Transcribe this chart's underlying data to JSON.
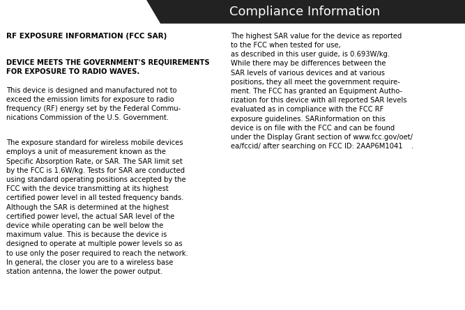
{
  "title": "Compliance Information",
  "title_bg": "#222222",
  "title_color": "#ffffff",
  "title_fontsize": 13,
  "bg_color": "#ffffff",
  "text_color": "#000000",
  "body_fontsize": 7.2,
  "left_heading": "RF EXPOSURE INFORMATION (FCC SAR)",
  "left_para1": "DEVICE MEETS THE GOVERNMENT'S REQUIREMENTS\nFOR EXPOSURE TO RADIO WAVES.",
  "left_para2": "This device is designed and manufactured not to\nexceed the emission limits for exposure to radio\nfrequency (RF) energy set by the Federal Commu-\nnications Commission of the U.S. Government.",
  "left_para3": "The exposure standard for wireless mobile devices\nemploys a unit of measurement known as the\nSpecific Absorption Rate, or SAR. The SAR limit set\nby the FCC is 1.6W/kg. Tests for SAR are conducted\nusing standard operating positions accepted by the\nFCC with the device transmitting at its highest\ncertified power level in all tested frequency bands.\nAlthough the SAR is determined at the highest\ncertified power level, the actual SAR level of the\ndevice while operating can be well below the\nmaximum value. This is because the device is\ndesigned to operate at multiple power levels so as\nto use only the poser required to reach the network.\nIn general, the closer you are to a wireless base\nstation antenna, the lower the power output.",
  "right_para1": "The highest SAR value for the device as reported\nto the FCC when tested for use,\nas described in this user guide, is 0.693W/kg.\nWhile there may be differences between the\nSAR levels of various devices and at various\npositions, they all meet the government require-\nment. The FCC has granted an Equipment Autho-\nrization for this device with all reported SAR levels\nevaluated as in compliance with the FCC RF\nexposure guidelines. SARinformation on this\ndevice is on file with the FCC and can be found\nunder the Display Grant section of www.fcc.gov/oet/\nea/fccid/ after searching on FCC ID: 2AAP6M1041    ."
}
